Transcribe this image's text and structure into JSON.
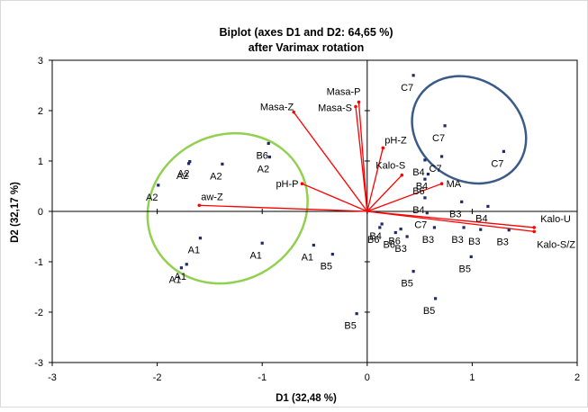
{
  "chart_data": {
    "type": "scatter",
    "title_line1": "Biplot (axes D1 and D2: 64,65 %)",
    "title_line2": "after Varimax rotation",
    "xlabel": "D1 (32,48 %)",
    "ylabel": "D2 (32,17 %)",
    "xlim": [
      -3,
      2
    ],
    "ylim": [
      -3,
      3
    ],
    "x_ticks": [
      -3,
      -2,
      -1,
      0,
      1,
      2
    ],
    "y_ticks": [
      -3,
      -2,
      -1,
      0,
      1,
      2,
      3
    ],
    "grid": false,
    "point_color": "#1f2a66",
    "vector_color": "#ff0000",
    "observations": [
      {
        "label": "A2",
        "x": -1.69,
        "y": 0.99
      },
      {
        "label": "A2",
        "x": -1.7,
        "y": 0.95
      },
      {
        "label": "A2",
        "x": -1.38,
        "y": 0.94
      },
      {
        "label": "A2",
        "x": -1.99,
        "y": 0.52
      },
      {
        "label": "B6",
        "x": -0.94,
        "y": 1.35
      },
      {
        "label": "A2",
        "x": -0.93,
        "y": 1.08
      },
      {
        "label": "A1",
        "x": -1.59,
        "y": -0.53
      },
      {
        "label": "A1",
        "x": -1.0,
        "y": -0.63
      },
      {
        "label": "A1",
        "x": -1.72,
        "y": -1.05
      },
      {
        "label": "A1",
        "x": -1.77,
        "y": -1.12
      },
      {
        "label": "A1",
        "x": -0.51,
        "y": -0.67
      },
      {
        "label": "B5",
        "x": -0.33,
        "y": -0.85
      },
      {
        "label": "B5",
        "x": -0.1,
        "y": -2.03
      },
      {
        "label": "C7",
        "x": 0.44,
        "y": 2.7
      },
      {
        "label": "C7",
        "x": 0.74,
        "y": 1.7
      },
      {
        "label": "C7",
        "x": 0.71,
        "y": 1.09
      },
      {
        "label": "C7",
        "x": 1.3,
        "y": 1.19
      },
      {
        "label": "B4",
        "x": 0.55,
        "y": 1.02
      },
      {
        "label": "B4",
        "x": 0.58,
        "y": 0.74
      },
      {
        "label": "B6",
        "x": 0.55,
        "y": 0.64
      },
      {
        "label": "B4",
        "x": 0.55,
        "y": 0.27
      },
      {
        "label": "B3",
        "x": 0.9,
        "y": 0.19
      },
      {
        "label": "B4",
        "x": 1.15,
        "y": 0.1
      },
      {
        "label": "C7",
        "x": 0.57,
        "y": -0.03
      },
      {
        "label": "B4",
        "x": 0.14,
        "y": -0.25
      },
      {
        "label": "B6",
        "x": 0.12,
        "y": -0.32
      },
      {
        "label": "B6",
        "x": 0.32,
        "y": -0.35
      },
      {
        "label": "B6",
        "x": 0.27,
        "y": -0.42
      },
      {
        "label": "B3",
        "x": 0.64,
        "y": -0.32
      },
      {
        "label": "B3",
        "x": 0.92,
        "y": -0.32
      },
      {
        "label": "B3",
        "x": 1.08,
        "y": -0.36
      },
      {
        "label": "B3",
        "x": 1.35,
        "y": -0.37
      },
      {
        "label": "B3",
        "x": 0.38,
        "y": -0.5
      },
      {
        "label": "B5",
        "x": 0.99,
        "y": -0.9
      },
      {
        "label": "B5",
        "x": 0.44,
        "y": -1.19
      },
      {
        "label": "B5",
        "x": 0.65,
        "y": -1.73
      }
    ],
    "variables": [
      {
        "label": "Masa-P",
        "x": -0.08,
        "y": 2.17
      },
      {
        "label": "Masa-S",
        "x": -0.11,
        "y": 2.08
      },
      {
        "label": "Masa-Z",
        "x": -0.7,
        "y": 1.97
      },
      {
        "label": "pH-Z",
        "x": 0.15,
        "y": 1.26
      },
      {
        "label": "Kalo-S",
        "x": 0.33,
        "y": 0.72
      },
      {
        "label": "MA",
        "x": 0.71,
        "y": 0.55
      },
      {
        "label": "pH-P",
        "x": -0.62,
        "y": 0.55
      },
      {
        "label": "aw-Z",
        "x": -1.6,
        "y": 0.12
      },
      {
        "label": "Kalo-U",
        "x": 1.59,
        "y": -0.32
      },
      {
        "label": "Kalo-S/Z",
        "x": 1.59,
        "y": -0.4
      }
    ],
    "ellipses": [
      {
        "group": "A",
        "color": "#92d050",
        "cx": -1.33,
        "cy": 0.06,
        "rx": 0.78,
        "ry": 1.45,
        "angle_deg": -28
      },
      {
        "group": "C7",
        "color": "#3b5b87",
        "cx": 0.97,
        "cy": 1.62,
        "rx": 0.48,
        "ry": 1.19,
        "angle_deg": -55
      }
    ]
  }
}
